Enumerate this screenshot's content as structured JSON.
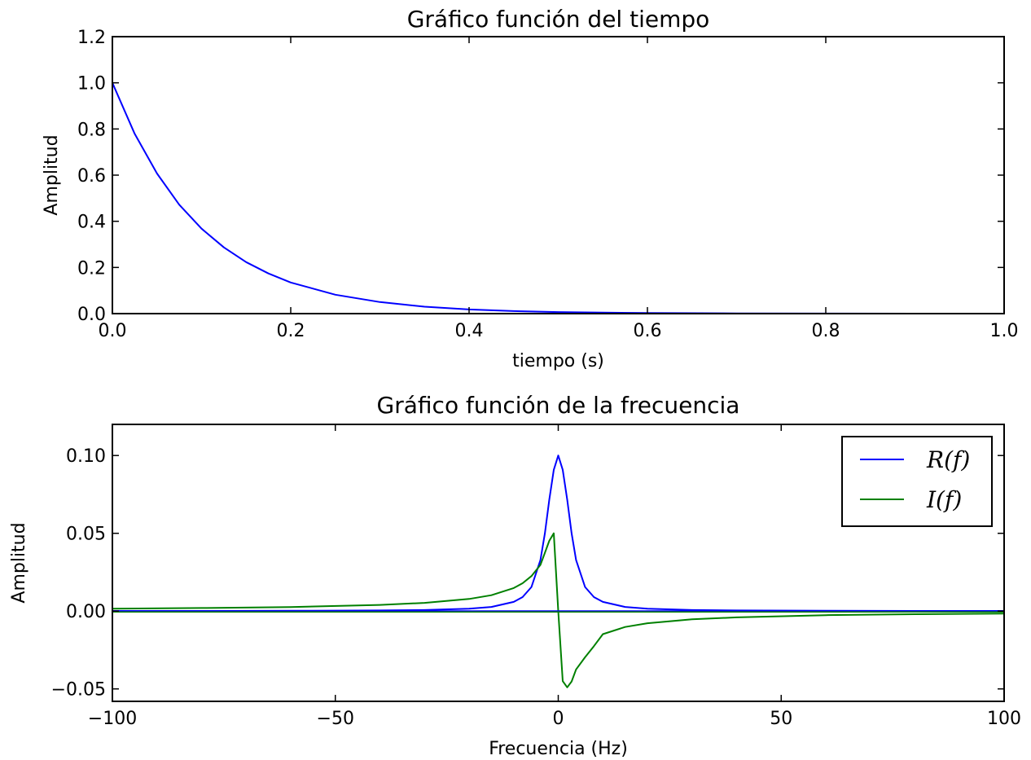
{
  "chart_data": [
    {
      "type": "line",
      "title": "Gráfico función del tiempo",
      "xlabel": "tiempo (s)",
      "ylabel": "Amplitud",
      "xlim": [
        0,
        1
      ],
      "ylim": [
        0,
        1.2
      ],
      "xticks": [
        0.0,
        0.2,
        0.4,
        0.6,
        0.8,
        1.0
      ],
      "xtick_labels": [
        "0.0",
        "0.2",
        "0.4",
        "0.6",
        "0.8",
        "1.0"
      ],
      "yticks": [
        0.0,
        0.2,
        0.4,
        0.6,
        0.8,
        1.0,
        1.2
      ],
      "ytick_labels": [
        "0.0",
        "0.2",
        "0.4",
        "0.6",
        "0.8",
        "1.0",
        "1.2"
      ],
      "grid": false,
      "series": [
        {
          "color": "#0000ff",
          "x": [
            0.0,
            0.025,
            0.05,
            0.075,
            0.1,
            0.125,
            0.15,
            0.175,
            0.2,
            0.25,
            0.3,
            0.35,
            0.4,
            0.45,
            0.5,
            0.55,
            0.6,
            0.7,
            0.8,
            0.9,
            1.0
          ],
          "y": [
            1.0,
            0.779,
            0.607,
            0.472,
            0.368,
            0.287,
            0.223,
            0.174,
            0.135,
            0.082,
            0.05,
            0.03,
            0.018,
            0.011,
            0.0067,
            0.0041,
            0.0025,
            0.0009,
            0.0003,
            0.0001,
            0.0
          ]
        }
      ]
    },
    {
      "type": "line",
      "title": "Gráfico función de la frecuencia",
      "xlabel": "Frecuencia (Hz)",
      "ylabel": "Amplitud",
      "xlim": [
        -100,
        100
      ],
      "ylim": [
        -0.058,
        0.12
      ],
      "xticks": [
        -100,
        -50,
        0,
        50,
        100
      ],
      "xtick_labels": [
        "−100",
        "−50",
        "0",
        "50",
        "100"
      ],
      "yticks": [
        -0.05,
        0.0,
        0.05,
        0.1
      ],
      "ytick_labels": [
        "−0.05",
        "0.00",
        "0.05",
        "0.10"
      ],
      "grid": false,
      "legend_position": "top-right",
      "series": [
        {
          "name": "R(f)",
          "color": "#0000ff",
          "x": [
            -100,
            -80,
            -60,
            -40,
            -30,
            -20,
            -15,
            -10,
            -8,
            -6,
            -4,
            -3,
            -2,
            -1,
            0,
            1,
            2,
            3,
            4,
            6,
            8,
            10,
            15,
            20,
            30,
            40,
            60,
            80,
            100
          ],
          "y": [
            0.0001,
            0.0001,
            0.0002,
            0.0004,
            0.0007,
            0.0015,
            0.0027,
            0.0059,
            0.009,
            0.0155,
            0.0328,
            0.05,
            0.0716,
            0.0908,
            0.1,
            0.0908,
            0.0716,
            0.05,
            0.0328,
            0.0155,
            0.009,
            0.0059,
            0.0027,
            0.0015,
            0.0007,
            0.0004,
            0.0002,
            0.0001,
            0.0001
          ]
        },
        {
          "name": "I(f)",
          "color": "#008000",
          "x": [
            -100,
            -80,
            -60,
            -40,
            -30,
            -20,
            -15,
            -10,
            -8,
            -6,
            -4,
            -3,
            -2,
            -1,
            0,
            1,
            2,
            3,
            4,
            6,
            8,
            10,
            15,
            20,
            30,
            40,
            60,
            80,
            100
          ],
          "y": [
            0.0016,
            0.002,
            0.0026,
            0.004,
            0.0053,
            0.0078,
            0.0102,
            0.0148,
            0.0179,
            0.0225,
            0.0297,
            0.0375,
            0.0452,
            0.05,
            0.0,
            -0.045,
            -0.049,
            -0.0452,
            -0.0375,
            -0.0297,
            -0.0225,
            -0.0148,
            -0.0102,
            -0.0078,
            -0.0053,
            -0.004,
            -0.0026,
            -0.002,
            -0.0016
          ]
        }
      ]
    }
  ]
}
